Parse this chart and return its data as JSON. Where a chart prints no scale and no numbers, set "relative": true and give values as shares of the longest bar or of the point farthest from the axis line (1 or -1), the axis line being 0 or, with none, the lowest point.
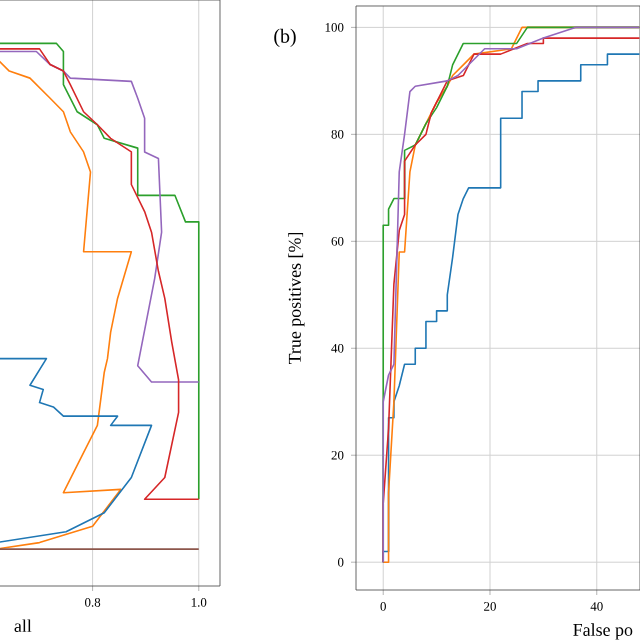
{
  "chart_data": [
    {
      "type": "line",
      "relative": true,
      "xlabel": "all",
      "xlim": [
        0.618,
        1.04
      ],
      "xticks": [
        0.8,
        {
          "value": 1.0,
          "label": "1.0"
        }
      ],
      "tick_labels": "x",
      "grid": "x",
      "series": [
        {
          "color": "#2ca02c",
          "x": [
            0.618,
            0.732,
            0.745,
            0.745,
            0.771,
            0.809,
            0.822,
            0.885,
            0.885,
            0.955,
            0.975,
            1.0,
            1.0
          ],
          "values": [
            1.0,
            1.0,
            0.985,
            0.924,
            0.874,
            0.85,
            0.825,
            0.807,
            0.72,
            0.72,
            0.671,
            0.671,
            0.16
          ]
        },
        {
          "color": "#9467bd",
          "x": [
            0.618,
            0.694,
            0.72,
            0.745,
            0.758,
            0.873,
            0.885,
            0.898,
            0.898,
            0.924,
            0.93,
            0.917,
            0.885,
            0.911,
            1.0
          ],
          "values": [
            0.985,
            0.985,
            0.961,
            0.949,
            0.936,
            0.93,
            0.899,
            0.862,
            0.8,
            0.788,
            0.652,
            0.567,
            0.406,
            0.376,
            0.376
          ]
        },
        {
          "color": "#d62728",
          "x": [
            0.618,
            0.7,
            0.72,
            0.745,
            0.758,
            0.783,
            0.809,
            0.834,
            0.873,
            0.873,
            0.898,
            0.911,
            0.924,
            0.936,
            0.949,
            0.962,
            0.962,
            0.936,
            0.898,
            1.0
          ],
          "values": [
            0.99,
            0.99,
            0.961,
            0.949,
            0.924,
            0.874,
            0.85,
            0.825,
            0.8,
            0.74,
            0.69,
            0.652,
            0.58,
            0.53,
            0.45,
            0.38,
            0.32,
            0.2,
            0.16,
            0.16
          ]
        },
        {
          "color": "#ff7f0e",
          "x": [
            0.618,
            0.643,
            0.682,
            0.72,
            0.745,
            0.758,
            0.783,
            0.796,
            0.783,
            0.873,
            0.847,
            0.834,
            0.828,
            0.822,
            0.809,
            0.783,
            0.745,
            0.853,
            0.8,
            0.7,
            0.618
          ],
          "values": [
            0.973,
            0.949,
            0.936,
            0.899,
            0.874,
            0.837,
            0.8,
            0.763,
            0.616,
            0.616,
            0.53,
            0.468,
            0.419,
            0.394,
            0.296,
            0.246,
            0.172,
            0.178,
            0.11,
            0.08,
            0.068
          ]
        },
        {
          "color": "#1f77b4",
          "x": [
            0.618,
            0.713,
            0.682,
            0.707,
            0.7,
            0.726,
            0.745,
            0.847,
            0.834,
            0.911,
            0.873,
            0.822,
            0.75,
            0.618
          ],
          "values": [
            0.419,
            0.419,
            0.37,
            0.362,
            0.338,
            0.33,
            0.313,
            0.313,
            0.296,
            0.296,
            0.2,
            0.135,
            0.1,
            0.08
          ]
        },
        {
          "color": "#8c564b",
          "x": [
            0.618,
            1.0
          ],
          "values": [
            0.068,
            0.068
          ]
        }
      ]
    },
    {
      "type": "line",
      "title": "(b)",
      "xlabel": "False po",
      "ylabel": "True positives [%]",
      "xlim": [
        -5.1,
        48.1
      ],
      "ylim": [
        -5.2,
        104
      ],
      "xticks": [
        0,
        20,
        40
      ],
      "yticks": [
        0,
        20,
        40,
        60,
        80,
        100
      ],
      "grid": true,
      "series": [
        {
          "color": "#1f77b4",
          "x": [
            0,
            0,
            1,
            1,
            2,
            2,
            3,
            4,
            6,
            6,
            8,
            8,
            10,
            10,
            12,
            12,
            13,
            14,
            15,
            16,
            22,
            22,
            26,
            26,
            29,
            29,
            37,
            37,
            42,
            42,
            48
          ],
          "values": [
            0,
            2,
            2,
            27,
            27,
            30,
            33,
            37,
            37,
            40,
            40,
            45,
            45,
            47,
            47,
            50,
            57,
            65,
            68,
            70,
            70,
            83,
            83,
            88,
            88,
            90,
            90,
            93,
            93,
            95,
            95
          ]
        },
        {
          "color": "#ff7f0e",
          "x": [
            0,
            1,
            1,
            2,
            3,
            4,
            5,
            6,
            7,
            8,
            10,
            12,
            13,
            15,
            17,
            24,
            26,
            48
          ],
          "values": [
            0,
            0,
            13,
            30,
            58,
            58,
            73,
            78,
            80,
            82,
            86,
            89,
            91,
            93,
            95,
            96,
            100,
            100
          ]
        },
        {
          "color": "#2ca02c",
          "x": [
            0,
            0,
            1,
            1,
            2,
            4,
            4,
            6,
            8,
            10,
            12,
            13,
            15,
            25,
            27,
            48
          ],
          "values": [
            0,
            63,
            63,
            66,
            68,
            68,
            77,
            78,
            82,
            85,
            89,
            93,
            97,
            97,
            100,
            100
          ]
        },
        {
          "color": "#d62728",
          "x": [
            0,
            0,
            1,
            2,
            3,
            4,
            4,
            6,
            8,
            9,
            12,
            15,
            17,
            22,
            27,
            30,
            30,
            48
          ],
          "values": [
            0,
            11,
            25,
            52,
            62,
            65,
            75,
            78,
            80,
            84,
            90,
            91,
            95,
            95,
            97,
            97,
            98,
            98
          ]
        },
        {
          "color": "#9467bd",
          "x": [
            0,
            0,
            1,
            2,
            3,
            4,
            5,
            6,
            12,
            14,
            19,
            25,
            30,
            36,
            48
          ],
          "values": [
            0,
            30,
            35,
            37,
            73,
            80,
            88,
            89,
            90,
            91,
            96,
            96,
            98,
            100,
            100
          ]
        }
      ]
    }
  ]
}
